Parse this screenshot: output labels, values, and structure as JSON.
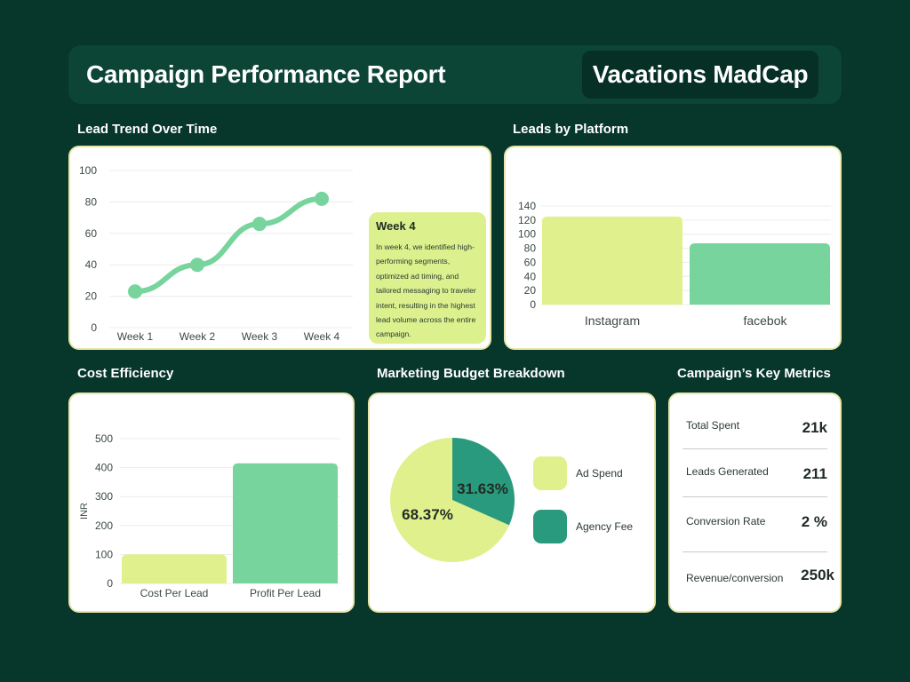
{
  "header": {
    "title": "Campaign Performance Report",
    "brand": "Vacations MadCap"
  },
  "sections": {
    "lead_trend": "Lead Trend Over Time",
    "leads_platform": "Leads by Platform",
    "cost_efficiency": "Cost Efficiency",
    "budget": "Marketing Budget Breakdown",
    "key_metrics": "Campaign’s Key Metrics"
  },
  "callout": {
    "title": "Week 4",
    "body": "In week 4, we identified high-performing segments, optimized ad timing, and tailored messaging to traveler intent, resulting in the highest lead volume across the entire campaign."
  },
  "colors": {
    "light": "#e0f08c",
    "green": "#76d49c",
    "teal": "#2a9a7e",
    "bg": "#07362a"
  },
  "chart_data": [
    {
      "type": "line",
      "title": "Lead Trend Over Time",
      "x": [
        "Week 1",
        "Week 2",
        "Week 3",
        "Week 4"
      ],
      "values": [
        23,
        40,
        66,
        82
      ],
      "ylim": [
        0,
        100
      ],
      "yticks": [
        0,
        20,
        40,
        60,
        80,
        100
      ],
      "grid": true
    },
    {
      "type": "bar",
      "title": "Leads by Platform",
      "categories": [
        "Instagram",
        "facebok"
      ],
      "values": [
        125,
        87
      ],
      "ylim": [
        0,
        140
      ],
      "yticks": [
        0,
        20,
        40,
        60,
        80,
        100,
        120,
        140
      ],
      "grid": true
    },
    {
      "type": "bar",
      "title": "Cost Efficiency",
      "categories": [
        "Cost Per Lead",
        "Profit Per Lead"
      ],
      "values": [
        100,
        415
      ],
      "ylabel": "INR",
      "ylim": [
        0,
        500
      ],
      "yticks": [
        0,
        100,
        200,
        300,
        400,
        500
      ],
      "grid": true
    },
    {
      "type": "pie",
      "title": "Marketing Budget Breakdown",
      "labels": [
        "Ad Spend",
        "Agency Fee"
      ],
      "values": [
        68.37,
        31.63
      ],
      "value_labels": [
        "68.37%",
        "31.63%"
      ],
      "legend": "right"
    }
  ],
  "metrics": [
    {
      "label": "Total Spent",
      "value": "21k"
    },
    {
      "label": "Leads Generated",
      "value": "211"
    },
    {
      "label": "Conversion Rate",
      "value": "2 %"
    },
    {
      "label": "Revenue/conversion",
      "value": "250k"
    }
  ]
}
